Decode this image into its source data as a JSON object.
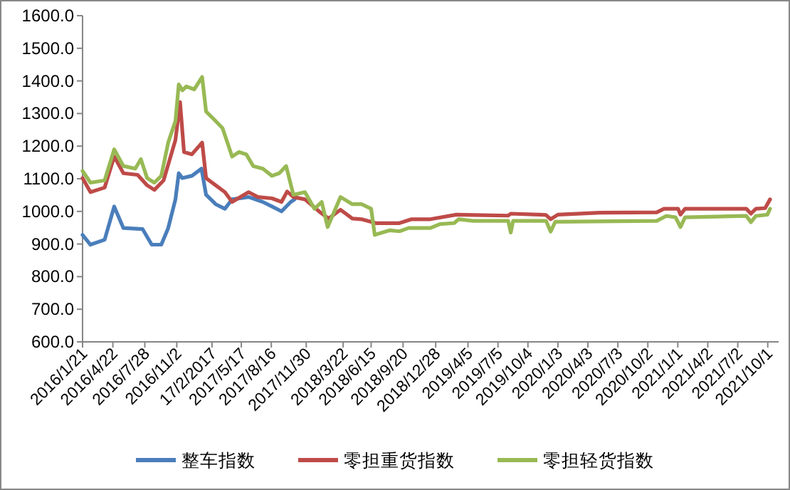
{
  "chart_data": {
    "type": "line",
    "legend": "bottom",
    "grid": false,
    "marker": "none",
    "line_style": "solid",
    "xlim": [
      "2016-01-21",
      "2021-11-03"
    ],
    "xticks": [
      {
        "value": "2016-01-21",
        "label": "2016/1/21"
      },
      {
        "value": "2016-04-22",
        "label": "2016/4/22"
      },
      {
        "value": "2016-07-28",
        "label": "2016/7/28"
      },
      {
        "value": "2016-11-02",
        "label": "2016/11/2"
      },
      {
        "value": "2017-02-17",
        "label": "17/2/2017"
      },
      {
        "value": "2017-05-17",
        "label": "2017/5/17"
      },
      {
        "value": "2017-08-16",
        "label": "2017/8/16"
      },
      {
        "value": "2017-11-30",
        "label": "2017/11/30"
      },
      {
        "value": "2018-03-22",
        "label": "2018/3/22"
      },
      {
        "value": "2018-06-15",
        "label": "2018/6/15"
      },
      {
        "value": "2018-09-20",
        "label": "2018/9/20"
      },
      {
        "value": "2018-12-28",
        "label": "2018/12/28"
      },
      {
        "value": "2019-04-05",
        "label": "2019/4/5"
      },
      {
        "value": "2019-07-05",
        "label": "2019/7/5"
      },
      {
        "value": "2019-10-04",
        "label": "2019/10/4"
      },
      {
        "value": "2020-01-03",
        "label": "2020/1/3"
      },
      {
        "value": "2020-04-03",
        "label": "2020/4/3"
      },
      {
        "value": "2020-07-03",
        "label": "2020/7/3"
      },
      {
        "value": "2020-10-02",
        "label": "2020/10/2"
      },
      {
        "value": "2021-01-01",
        "label": "2021/1/1"
      },
      {
        "value": "2021-04-02",
        "label": "2021/4/2"
      },
      {
        "value": "2021-07-02",
        "label": "2021/7/2"
      },
      {
        "value": "2021-10-01",
        "label": "2021/10/1"
      }
    ],
    "ylim": [
      600,
      1600
    ],
    "yticks": [
      {
        "value": 600,
        "label": "600.0"
      },
      {
        "value": 700,
        "label": "700.0"
      },
      {
        "value": 800,
        "label": "800.0"
      },
      {
        "value": 900,
        "label": "900.0"
      },
      {
        "value": 1000,
        "label": "1000.0"
      },
      {
        "value": 1100,
        "label": "1100.0"
      },
      {
        "value": 1200,
        "label": "1200.0"
      },
      {
        "value": 1300,
        "label": "1300.0"
      },
      {
        "value": 1400,
        "label": "1400.0"
      },
      {
        "value": 1500,
        "label": "1500.0"
      },
      {
        "value": 1600,
        "label": "1600.0"
      }
    ],
    "series": [
      {
        "name": "整车指数",
        "color": "#4a7ebb",
        "x": [
          "2016-01-21",
          "2016-02-14",
          "2016-03-28",
          "2016-04-26",
          "2016-05-24",
          "2016-07-21",
          "2016-08-18",
          "2016-09-16",
          "2016-10-07",
          "2016-10-29",
          "2016-11-08",
          "2016-11-19",
          "2016-12-18",
          "2017-01-16",
          "2017-01-30",
          "2017-02-28",
          "2017-03-28",
          "2017-04-19",
          "2017-06-08",
          "2017-07-21",
          "2017-08-18",
          "2017-09-16",
          "2017-10-14",
          "2017-10-26"
        ],
        "values": [
          928,
          898,
          913,
          1015,
          949,
          946,
          898,
          898,
          949,
          1037,
          1117,
          1102,
          1109,
          1131,
          1051,
          1022,
          1008,
          1037,
          1044,
          1029,
          1015,
          1000,
          1029,
          1037
        ]
      },
      {
        "name": "零担重货指数",
        "color": "#be4b48",
        "x": [
          "2016-01-21",
          "2016-02-14",
          "2016-03-28",
          "2016-04-26",
          "2016-05-24",
          "2016-07-06",
          "2016-08-04",
          "2016-08-26",
          "2016-09-23",
          "2016-10-29",
          "2016-11-12",
          "2016-11-24",
          "2016-12-18",
          "2017-01-18",
          "2017-01-30",
          "2017-02-28",
          "2017-03-28",
          "2017-04-19",
          "2017-06-08",
          "2017-07-06",
          "2017-08-18",
          "2017-09-16",
          "2017-10-03",
          "2017-10-22",
          "2017-11-26",
          "2018-01-08",
          "2018-02-06",
          "2018-03-14",
          "2018-04-19",
          "2018-05-17",
          "2018-06-29",
          "2018-09-09",
          "2018-10-16",
          "2018-12-12",
          "2019-03-01",
          "2019-04-20",
          "2019-08-05",
          "2019-08-13",
          "2019-11-28",
          "2019-12-12",
          "2020-01-03",
          "2020-05-10",
          "2020-10-29",
          "2020-11-20",
          "2021-01-02",
          "2021-01-09",
          "2021-01-23",
          "2021-07-28",
          "2021-08-11",
          "2021-08-26",
          "2021-09-23",
          "2021-10-08"
        ],
        "values": [
          1102,
          1059,
          1073,
          1168,
          1117,
          1112,
          1080,
          1066,
          1095,
          1219,
          1335,
          1182,
          1175,
          1211,
          1102,
          1080,
          1059,
          1029,
          1059,
          1044,
          1040,
          1029,
          1061,
          1044,
          1037,
          1000,
          978,
          1005,
          978,
          976,
          964,
          964,
          976,
          976,
          990,
          989,
          987,
          993,
          989,
          976,
          990,
          996,
          997,
          1008,
          1008,
          990,
          1008,
          1008,
          993,
          1008,
          1010,
          1037
        ]
      },
      {
        "name": "零担轻货指数",
        "color": "#98b954",
        "x": [
          "2016-01-21",
          "2016-02-14",
          "2016-03-28",
          "2016-04-26",
          "2016-05-24",
          "2016-06-29",
          "2016-07-16",
          "2016-08-04",
          "2016-08-26",
          "2016-09-16",
          "2016-10-07",
          "2016-10-29",
          "2016-11-08",
          "2016-11-19",
          "2016-12-01",
          "2016-12-25",
          "2017-01-18",
          "2017-01-30",
          "2017-02-28",
          "2017-03-21",
          "2017-04-19",
          "2017-05-10",
          "2017-06-01",
          "2017-06-22",
          "2017-07-21",
          "2017-08-18",
          "2017-09-09",
          "2017-09-30",
          "2017-10-22",
          "2017-11-26",
          "2017-12-25",
          "2018-01-16",
          "2018-02-03",
          "2018-03-14",
          "2018-04-19",
          "2018-05-17",
          "2018-06-15",
          "2018-06-26",
          "2018-08-11",
          "2018-09-09",
          "2018-10-07",
          "2018-11-19",
          "2018-12-12",
          "2019-01-10",
          "2019-02-22",
          "2019-03-08",
          "2019-04-20",
          "2019-08-05",
          "2019-08-13",
          "2019-08-20",
          "2019-11-28",
          "2019-12-12",
          "2019-12-26",
          "2020-10-29",
          "2020-11-27",
          "2020-12-25",
          "2021-01-09",
          "2021-01-23",
          "2021-07-28",
          "2021-08-11",
          "2021-08-26",
          "2021-09-30",
          "2021-10-08"
        ],
        "values": [
          1124,
          1088,
          1095,
          1190,
          1139,
          1131,
          1160,
          1102,
          1088,
          1109,
          1211,
          1277,
          1389,
          1371,
          1383,
          1374,
          1412,
          1306,
          1277,
          1255,
          1168,
          1182,
          1175,
          1139,
          1131,
          1109,
          1117,
          1139,
          1051,
          1059,
          1008,
          1029,
          952,
          1044,
          1022,
          1022,
          1008,
          928,
          942,
          939,
          949,
          949,
          949,
          961,
          964,
          976,
          971,
          971,
          935,
          971,
          971,
          938,
          968,
          971,
          986,
          982,
          952,
          982,
          986,
          967,
          986,
          990,
          1008
        ]
      }
    ]
  }
}
